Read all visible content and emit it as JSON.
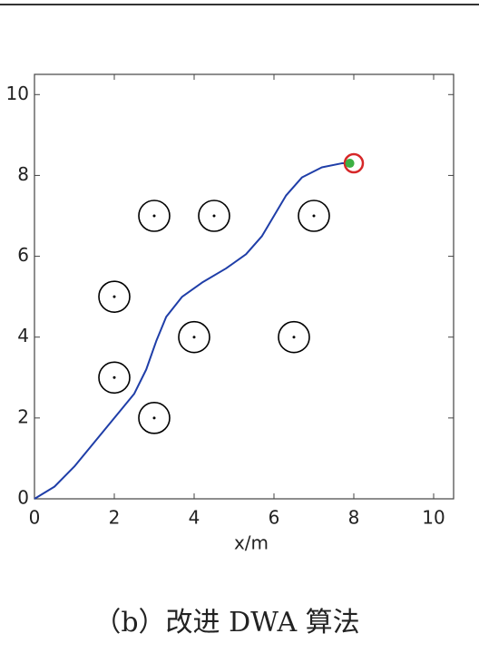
{
  "chart_data": {
    "type": "path",
    "xlabel": "x/m",
    "xlim": [
      0,
      10.5
    ],
    "ylim": [
      0,
      10.5
    ],
    "xticks": [
      0,
      2,
      4,
      6,
      8,
      10
    ],
    "yticks": [
      0,
      2,
      4,
      6,
      8,
      10
    ],
    "path": {
      "color": "#1f3ea8",
      "x": [
        0,
        0.5,
        1,
        1.5,
        2,
        2.5,
        2.8,
        3.05,
        3.3,
        3.7,
        4.2,
        4.8,
        5.3,
        5.7,
        6.0,
        6.3,
        6.7,
        7.2,
        7.7,
        8.0
      ],
      "y": [
        0,
        0.3,
        0.8,
        1.4,
        2.0,
        2.6,
        3.2,
        3.9,
        4.5,
        5.0,
        5.35,
        5.7,
        6.05,
        6.5,
        7.0,
        7.5,
        7.95,
        8.2,
        8.3,
        8.3
      ]
    },
    "obstacles": {
      "color": "#000000",
      "x": [
        3,
        4.5,
        7,
        2,
        4,
        6.5,
        2,
        3
      ],
      "y": [
        7,
        7,
        7,
        5,
        4,
        4,
        3,
        2
      ]
    },
    "goal": {
      "x": 8,
      "y": 8.3,
      "color": "#d62728"
    },
    "robot": {
      "x": 7.9,
      "y": 8.3,
      "color": "#3cb043"
    }
  },
  "caption": "（b）改进 DWA 算法"
}
